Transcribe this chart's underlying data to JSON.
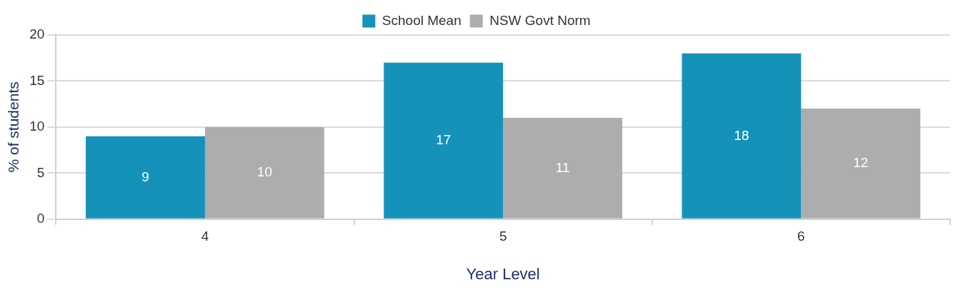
{
  "chart_data": {
    "type": "bar",
    "xlabel": "Year Level",
    "ylabel": "% of students",
    "categories": [
      "4",
      "5",
      "6"
    ],
    "series": [
      {
        "name": "School Mean",
        "color": "#1592ba",
        "values": [
          9,
          17,
          18
        ]
      },
      {
        "name": "NSW Govt Norm",
        "color": "#acadaf",
        "values": [
          10,
          11,
          12
        ]
      }
    ],
    "ylim": [
      0,
      20
    ],
    "yticks": [
      0,
      5,
      10,
      15,
      20
    ],
    "grid": "y",
    "legend": "top",
    "data_labels": true
  }
}
